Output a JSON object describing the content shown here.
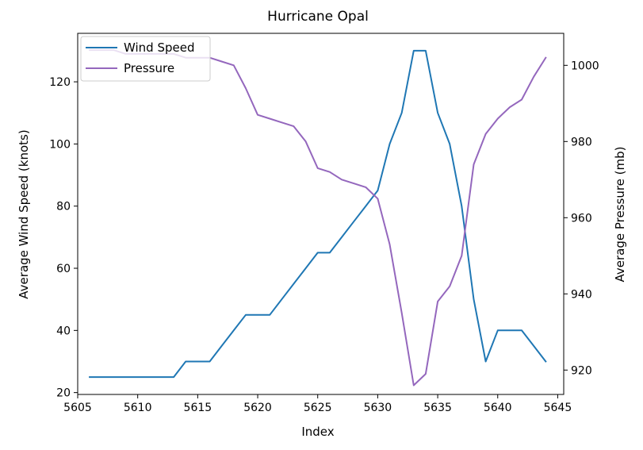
{
  "chart_data": {
    "type": "line",
    "title": "Hurricane Opal",
    "xlabel": "Index",
    "ylabel_left": "Average Wind Speed (knots)",
    "ylabel_right": "Average Pressure (mb)",
    "x": [
      5606,
      5607,
      5608,
      5609,
      5610,
      5611,
      5612,
      5613,
      5614,
      5615,
      5616,
      5617,
      5618,
      5619,
      5620,
      5621,
      5622,
      5623,
      5624,
      5625,
      5626,
      5627,
      5628,
      5629,
      5630,
      5631,
      5632,
      5633,
      5634,
      5635,
      5636,
      5637,
      5638,
      5639,
      5640,
      5641,
      5642,
      5643,
      5644
    ],
    "xlim": [
      5605,
      5645.5
    ],
    "xticks": [
      5605,
      5610,
      5615,
      5620,
      5625,
      5630,
      5635,
      5640,
      5645
    ],
    "series": [
      {
        "name": "Wind Speed",
        "axis": "left",
        "color": "#1f77b4",
        "values": [
          25,
          25,
          25,
          25,
          25,
          25,
          25,
          25,
          30,
          30,
          30,
          35,
          40,
          45,
          45,
          45,
          50,
          55,
          60,
          65,
          65,
          70,
          75,
          80,
          85,
          100,
          110,
          130,
          130,
          110,
          100,
          80,
          50,
          30,
          40,
          40,
          40,
          35,
          30
        ]
      },
      {
        "name": "Pressure",
        "axis": "right",
        "color": "#9467bd",
        "values": [
          1004,
          1004,
          1004,
          1003,
          1003,
          1003,
          1003,
          1003,
          1002,
          1002,
          1002,
          1001,
          1000,
          994,
          987,
          986,
          985,
          984,
          980,
          973,
          972,
          970,
          969,
          968,
          965,
          953,
          935,
          916,
          919,
          938,
          942,
          950,
          974,
          982,
          986,
          989,
          991,
          997,
          1002
        ]
      }
    ],
    "ylim_left": [
      19.4,
      135.6
    ],
    "yticks_left": [
      20,
      40,
      60,
      80,
      100,
      120
    ],
    "ylim_right": [
      913.6,
      1008.4
    ],
    "yticks_right": [
      920,
      940,
      960,
      980,
      1000
    ],
    "legend_position": "top-left",
    "grid": false
  }
}
